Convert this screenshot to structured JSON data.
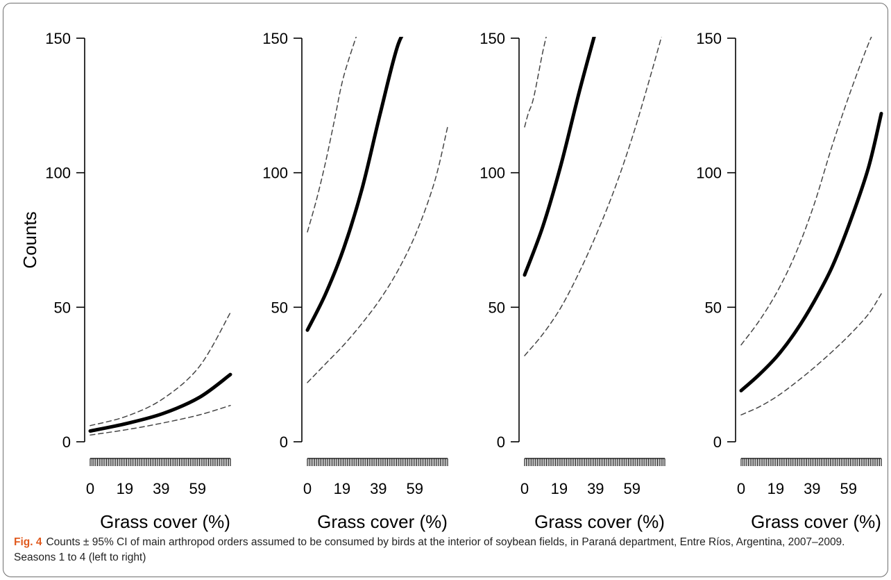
{
  "caption": {
    "label": "Fig. 4",
    "text": "Counts ± 95% CI of main arthropod orders assumed to be consumed by birds at the interior of soybean fields, in Paraná department, Entre Ríos, Argentina, 2007–2009. Seasons 1 to 4 (left to right)"
  },
  "colors": {
    "fit_line": "#000000",
    "ci_line": "#444444",
    "frame": "#6e6e6e",
    "caption_label": "#e05a1e"
  },
  "chart_data": [
    {
      "type": "line",
      "xlabel": "Grass cover (%)",
      "ylabel": "Counts",
      "xlim": [
        0,
        77
      ],
      "ylim": [
        0,
        150
      ],
      "x_ticks": [
        0,
        19,
        39,
        59
      ],
      "y_ticks": [
        0,
        50,
        100,
        150
      ],
      "rug": true,
      "series": [
        {
          "role": "fit",
          "style": "solid",
          "x": [
            0,
            20,
            40,
            60,
            77
          ],
          "y": [
            4,
            6.8,
            10.5,
            16.5,
            25
          ]
        },
        {
          "role": "ci_upper",
          "style": "dashed",
          "x": [
            0,
            20,
            40,
            60,
            77
          ],
          "y": [
            6,
            9.5,
            16,
            28,
            48
          ]
        },
        {
          "role": "ci_lower",
          "style": "dashed",
          "x": [
            0,
            20,
            40,
            60,
            77
          ],
          "y": [
            2.5,
            4.5,
            7,
            10,
            13.5
          ]
        }
      ]
    },
    {
      "type": "line",
      "xlabel": "Grass cover (%)",
      "ylabel": "",
      "xlim": [
        0,
        77
      ],
      "ylim": [
        0,
        150
      ],
      "x_ticks": [
        0,
        19,
        39,
        59
      ],
      "y_ticks": [
        0,
        50,
        100,
        150
      ],
      "rug": true,
      "series": [
        {
          "role": "fit",
          "style": "solid",
          "x": [
            0,
            10,
            20,
            30,
            40,
            50,
            57.5
          ],
          "y": [
            41.5,
            55,
            72,
            94,
            122,
            148,
            155
          ]
        },
        {
          "role": "ci_upper",
          "style": "dashed",
          "x": [
            0,
            5,
            10,
            15,
            20,
            29
          ],
          "y": [
            78,
            90,
            104,
            120,
            136,
            155
          ]
        },
        {
          "role": "ci_lower",
          "style": "dashed",
          "x": [
            0,
            10,
            20,
            30,
            40,
            50,
            60,
            70,
            77
          ],
          "y": [
            22,
            29,
            36,
            44,
            53,
            64,
            78,
            97,
            117
          ]
        }
      ]
    },
    {
      "type": "line",
      "xlabel": "Grass cover (%)",
      "ylabel": "",
      "xlim": [
        0,
        77
      ],
      "ylim": [
        0,
        150
      ],
      "x_ticks": [
        0,
        19,
        39,
        59
      ],
      "y_ticks": [
        0,
        50,
        100,
        150
      ],
      "rug": true,
      "series": [
        {
          "role": "fit",
          "style": "solid",
          "x": [
            0,
            10,
            20,
            30,
            40
          ],
          "y": [
            62,
            80,
            103,
            130,
            155
          ]
        },
        {
          "role": "ci_upper",
          "style": "dashed",
          "x": [
            0,
            2,
            5,
            10,
            13.5
          ],
          "y": [
            117,
            122,
            128,
            145,
            155
          ]
        },
        {
          "role": "ci_lower",
          "style": "dashed",
          "x": [
            0,
            10,
            20,
            30,
            40,
            50,
            60,
            70,
            77
          ],
          "y": [
            32,
            40,
            50,
            63,
            78,
            95,
            115,
            138,
            155
          ]
        }
      ]
    },
    {
      "type": "line",
      "xlabel": "Grass cover (%)",
      "ylabel": "",
      "xlim": [
        0,
        77
      ],
      "ylim": [
        0,
        150
      ],
      "x_ticks": [
        0,
        19,
        39,
        59
      ],
      "y_ticks": [
        0,
        50,
        100,
        150
      ],
      "rug": true,
      "series": [
        {
          "role": "fit",
          "style": "solid",
          "x": [
            0,
            10,
            20,
            30,
            40,
            50,
            60,
            70,
            77
          ],
          "y": [
            19,
            25,
            32,
            41,
            52,
            65,
            82,
            102,
            122
          ]
        },
        {
          "role": "ci_upper",
          "style": "dashed",
          "x": [
            0,
            10,
            20,
            30,
            40,
            50,
            60,
            70,
            75
          ],
          "y": [
            36,
            45,
            56,
            70,
            88,
            110,
            130,
            148,
            155
          ]
        },
        {
          "role": "ci_lower",
          "style": "dashed",
          "x": [
            0,
            10,
            20,
            30,
            40,
            50,
            60,
            70,
            77
          ],
          "y": [
            10,
            13,
            17,
            22,
            27.5,
            33.5,
            40,
            47.5,
            55
          ]
        }
      ]
    }
  ]
}
